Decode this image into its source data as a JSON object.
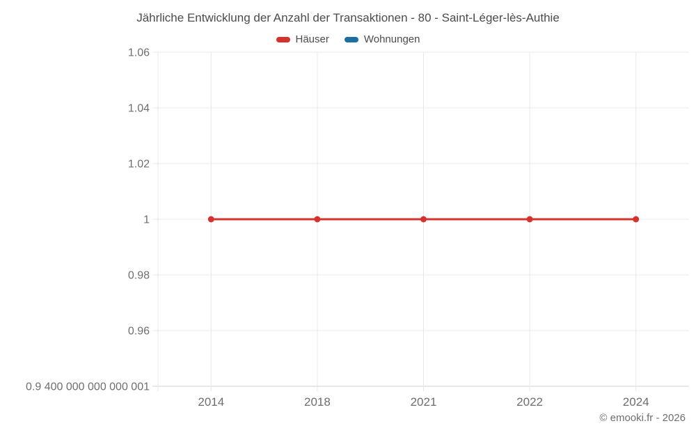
{
  "footer": {
    "attribution": "© emooki.fr - 2026"
  },
  "chart_data": {
    "type": "line",
    "title": "Jährliche Entwicklung der Anzahl der Transaktionen - 80 - Saint-Léger-lès-Authie",
    "categories": [
      "2014",
      "2018",
      "2021",
      "2022",
      "2024"
    ],
    "series": [
      {
        "name": "Häuser",
        "color": "#d5312d",
        "values": [
          1,
          1,
          1,
          1,
          1
        ]
      },
      {
        "name": "Wohnungen",
        "color": "#1c6ea4",
        "values": []
      }
    ],
    "ylim": [
      0.9400000000000001,
      1.06
    ],
    "yticks": [
      {
        "value": 1.06,
        "label": "1.06"
      },
      {
        "value": 1.04,
        "label": "1.04"
      },
      {
        "value": 1.02,
        "label": "1.02"
      },
      {
        "value": 1,
        "label": "1"
      },
      {
        "value": 0.98,
        "label": "0.98"
      },
      {
        "value": 0.96,
        "label": "0.96"
      },
      {
        "value": 0.9400000000000001,
        "label": "0.9 400 000 000 000 001"
      }
    ],
    "grid": true,
    "legend_position": "top",
    "xlabel": "",
    "ylabel": "",
    "colors": {
      "gridline": "#e8e8e8",
      "axis_line": "#d2d2d2",
      "tick_label": "#6e6e6e",
      "title_text": "#4b4b4b"
    }
  }
}
